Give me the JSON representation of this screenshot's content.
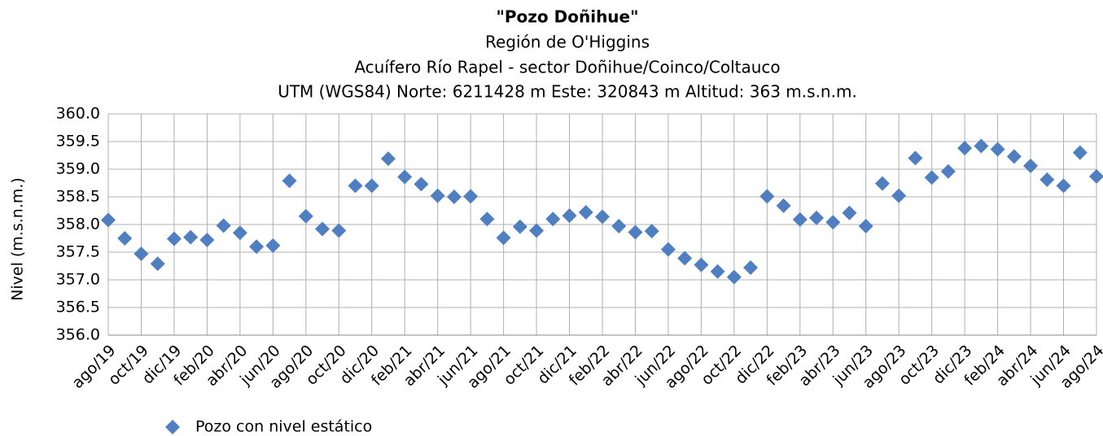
{
  "chart_data": {
    "type": "scatter",
    "title": "\"Pozo Doñihue\"",
    "subtitle": [
      "Región de O'Higgins",
      "Acuífero Río Rapel - sector Doñihue/Coinco/Coltauco",
      "UTM (WGS84) Norte: 6211428 m  Este: 320843 m   Altitud: 363 m.s.n.m."
    ],
    "y_label": "Nivel (m.s.n.m.)",
    "x": [
      "2019-08",
      "2019-09",
      "2019-10",
      "2019-11",
      "2019-12",
      "2020-01",
      "2020-02",
      "2020-03",
      "2020-04",
      "2020-05",
      "2020-06",
      "2020-07",
      "2020-08",
      "2020-09",
      "2020-10",
      "2020-11",
      "2020-12",
      "2021-01",
      "2021-02",
      "2021-03",
      "2021-04",
      "2021-05",
      "2021-06",
      "2021-07",
      "2021-08",
      "2021-09",
      "2021-10",
      "2021-11",
      "2021-12",
      "2022-01",
      "2022-02",
      "2022-03",
      "2022-04",
      "2022-05",
      "2022-06",
      "2022-07",
      "2022-08",
      "2022-09",
      "2022-10",
      "2022-11",
      "2022-12",
      "2023-01",
      "2023-02",
      "2023-03",
      "2023-04",
      "2023-05",
      "2023-06",
      "2023-07",
      "2023-08",
      "2023-09",
      "2023-10",
      "2023-11",
      "2023-12",
      "2024-01",
      "2024-02",
      "2024-03",
      "2024-04",
      "2024-05",
      "2024-06",
      "2024-07",
      "2024-08"
    ],
    "series": [
      {
        "name": "Pozo con nivel estático",
        "color": "#4f7fc0",
        "values": [
          358.08,
          357.75,
          357.47,
          357.29,
          357.74,
          357.77,
          357.72,
          357.98,
          357.85,
          357.6,
          357.62,
          358.79,
          358.15,
          357.92,
          357.89,
          358.7,
          358.7,
          359.19,
          358.86,
          358.73,
          358.52,
          358.5,
          358.51,
          358.1,
          357.76,
          357.96,
          357.89,
          358.1,
          358.16,
          358.22,
          358.14,
          357.97,
          357.86,
          357.88,
          357.55,
          357.39,
          357.27,
          357.15,
          357.05,
          357.22,
          358.51,
          358.34,
          358.09,
          358.12,
          358.04,
          358.21,
          357.97,
          358.74,
          358.52,
          359.2,
          358.85,
          358.96,
          359.38,
          359.42,
          359.36,
          359.23,
          359.06,
          358.81,
          358.7,
          359.3,
          358.87
        ]
      }
    ],
    "xlim": [
      "2019-08",
      "2024-08"
    ],
    "xticks": [
      {
        "value": "2019-08",
        "label": "ago/19"
      },
      {
        "value": "2019-10",
        "label": "oct/19"
      },
      {
        "value": "2019-12",
        "label": "dic/19"
      },
      {
        "value": "2020-02",
        "label": "feb/20"
      },
      {
        "value": "2020-04",
        "label": "abr/20"
      },
      {
        "value": "2020-06",
        "label": "jun/20"
      },
      {
        "value": "2020-08",
        "label": "ago/20"
      },
      {
        "value": "2020-10",
        "label": "oct/20"
      },
      {
        "value": "2020-12",
        "label": "dic/20"
      },
      {
        "value": "2021-02",
        "label": "feb/21"
      },
      {
        "value": "2021-04",
        "label": "abr/21"
      },
      {
        "value": "2021-06",
        "label": "jun/21"
      },
      {
        "value": "2021-08",
        "label": "ago/21"
      },
      {
        "value": "2021-10",
        "label": "oct/21"
      },
      {
        "value": "2021-12",
        "label": "dic/21"
      },
      {
        "value": "2022-02",
        "label": "feb/22"
      },
      {
        "value": "2022-04",
        "label": "abr/22"
      },
      {
        "value": "2022-06",
        "label": "jun/22"
      },
      {
        "value": "2022-08",
        "label": "ago/22"
      },
      {
        "value": "2022-10",
        "label": "oct/22"
      },
      {
        "value": "2022-12",
        "label": "dic/22"
      },
      {
        "value": "2023-02",
        "label": "feb/23"
      },
      {
        "value": "2023-04",
        "label": "abr/23"
      },
      {
        "value": "2023-06",
        "label": "jun/23"
      },
      {
        "value": "2023-08",
        "label": "ago/23"
      },
      {
        "value": "2023-10",
        "label": "oct/23"
      },
      {
        "value": "2023-12",
        "label": "dic/23"
      },
      {
        "value": "2024-02",
        "label": "feb/24"
      },
      {
        "value": "2024-04",
        "label": "abr/24"
      },
      {
        "value": "2024-06",
        "label": "jun/24"
      },
      {
        "value": "2024-08",
        "label": "ago/24"
      }
    ],
    "ylim": [
      356,
      360
    ],
    "yticks": [
      {
        "value": 356,
        "label": "356.0"
      },
      {
        "value": 356.5,
        "label": "356.5"
      },
      {
        "value": 357,
        "label": "357.0"
      },
      {
        "value": 357.5,
        "label": "357.5"
      },
      {
        "value": 358,
        "label": "358.0"
      },
      {
        "value": 358.5,
        "label": "358.5"
      },
      {
        "value": 359,
        "label": "359.0"
      },
      {
        "value": 359.5,
        "label": "359.5"
      },
      {
        "value": 360,
        "label": "360.0"
      }
    ],
    "grid": true,
    "legend": "bottom-left"
  }
}
